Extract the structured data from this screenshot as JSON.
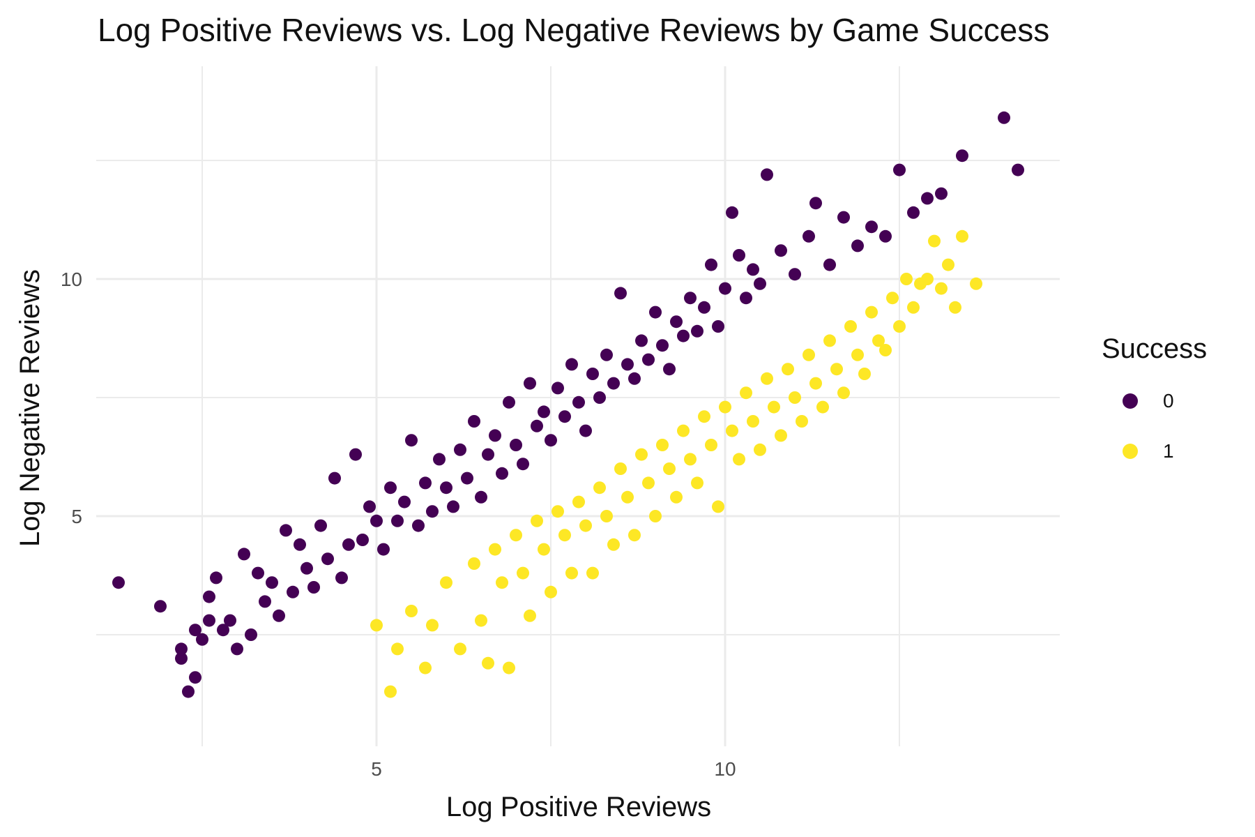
{
  "chart_data": {
    "type": "scatter",
    "title": "Log Positive Reviews vs. Log Negative Reviews by Game Success",
    "xlabel": "Log Positive Reviews",
    "ylabel": "Log Negative Reviews",
    "xlim": [
      1.3,
      14.9
    ],
    "ylim": [
      0.5,
      13.4
    ],
    "x_ticks": [
      5,
      10
    ],
    "y_ticks": [
      5,
      10
    ],
    "grid": true,
    "legend": {
      "title": "Success",
      "position": "right"
    },
    "series": [
      {
        "name": "0",
        "color": "#440154",
        "points": [
          [
            1.3,
            3.6
          ],
          [
            1.9,
            3.1
          ],
          [
            2.2,
            2.0
          ],
          [
            2.2,
            2.2
          ],
          [
            2.3,
            1.3
          ],
          [
            2.4,
            1.6
          ],
          [
            2.4,
            2.6
          ],
          [
            2.5,
            2.4
          ],
          [
            2.6,
            2.8
          ],
          [
            2.6,
            3.3
          ],
          [
            2.7,
            3.7
          ],
          [
            2.8,
            2.6
          ],
          [
            2.9,
            2.8
          ],
          [
            3.0,
            2.2
          ],
          [
            3.1,
            4.2
          ],
          [
            3.2,
            2.5
          ],
          [
            3.3,
            3.8
          ],
          [
            3.4,
            3.2
          ],
          [
            3.5,
            3.6
          ],
          [
            3.6,
            2.9
          ],
          [
            3.7,
            4.7
          ],
          [
            3.8,
            3.4
          ],
          [
            3.9,
            4.4
          ],
          [
            4.0,
            3.9
          ],
          [
            4.1,
            3.5
          ],
          [
            4.2,
            4.8
          ],
          [
            4.3,
            4.1
          ],
          [
            4.4,
            5.8
          ],
          [
            4.5,
            3.7
          ],
          [
            4.6,
            4.4
          ],
          [
            4.7,
            6.3
          ],
          [
            4.8,
            4.5
          ],
          [
            4.9,
            5.2
          ],
          [
            5.0,
            4.9
          ],
          [
            5.1,
            4.3
          ],
          [
            5.2,
            5.6
          ],
          [
            5.3,
            4.9
          ],
          [
            5.4,
            5.3
          ],
          [
            5.5,
            6.6
          ],
          [
            5.6,
            4.8
          ],
          [
            5.7,
            5.7
          ],
          [
            5.8,
            5.1
          ],
          [
            5.9,
            6.2
          ],
          [
            6.0,
            5.6
          ],
          [
            6.1,
            5.2
          ],
          [
            6.2,
            6.4
          ],
          [
            6.3,
            5.8
          ],
          [
            6.4,
            7.0
          ],
          [
            6.5,
            5.4
          ],
          [
            6.6,
            6.3
          ],
          [
            6.7,
            6.7
          ],
          [
            6.8,
            5.9
          ],
          [
            6.9,
            7.4
          ],
          [
            7.0,
            6.5
          ],
          [
            7.1,
            6.1
          ],
          [
            7.2,
            7.8
          ],
          [
            7.3,
            6.9
          ],
          [
            7.4,
            7.2
          ],
          [
            7.5,
            6.6
          ],
          [
            7.6,
            7.7
          ],
          [
            7.7,
            7.1
          ],
          [
            7.8,
            8.2
          ],
          [
            7.9,
            7.4
          ],
          [
            8.0,
            6.8
          ],
          [
            8.1,
            8.0
          ],
          [
            8.2,
            7.5
          ],
          [
            8.3,
            8.4
          ],
          [
            8.4,
            7.8
          ],
          [
            8.5,
            9.7
          ],
          [
            8.6,
            8.2
          ],
          [
            8.7,
            7.9
          ],
          [
            8.8,
            8.7
          ],
          [
            8.9,
            8.3
          ],
          [
            9.0,
            9.3
          ],
          [
            9.1,
            8.6
          ],
          [
            9.2,
            8.1
          ],
          [
            9.3,
            9.1
          ],
          [
            9.4,
            8.8
          ],
          [
            9.5,
            9.6
          ],
          [
            9.6,
            8.9
          ],
          [
            9.7,
            9.4
          ],
          [
            9.8,
            10.3
          ],
          [
            9.9,
            9.0
          ],
          [
            10.0,
            9.8
          ],
          [
            10.1,
            11.4
          ],
          [
            10.2,
            10.5
          ],
          [
            10.3,
            9.6
          ],
          [
            10.4,
            10.2
          ],
          [
            10.5,
            9.9
          ],
          [
            10.6,
            12.2
          ],
          [
            10.8,
            10.6
          ],
          [
            11.0,
            10.1
          ],
          [
            11.2,
            10.9
          ],
          [
            11.3,
            11.6
          ],
          [
            11.5,
            10.3
          ],
          [
            11.7,
            11.3
          ],
          [
            11.9,
            10.7
          ],
          [
            12.1,
            11.1
          ],
          [
            12.3,
            10.9
          ],
          [
            12.5,
            12.3
          ],
          [
            12.7,
            11.4
          ],
          [
            12.9,
            11.7
          ],
          [
            13.1,
            11.8
          ],
          [
            13.4,
            12.6
          ],
          [
            14.0,
            13.4
          ],
          [
            14.2,
            12.3
          ]
        ]
      },
      {
        "name": "1",
        "color": "#FDE725",
        "points": [
          [
            5.0,
            2.7
          ],
          [
            5.2,
            1.3
          ],
          [
            5.3,
            2.2
          ],
          [
            5.5,
            3.0
          ],
          [
            5.7,
            1.8
          ],
          [
            5.8,
            2.7
          ],
          [
            6.0,
            3.6
          ],
          [
            6.2,
            2.2
          ],
          [
            6.4,
            4.0
          ],
          [
            6.5,
            2.8
          ],
          [
            6.6,
            1.9
          ],
          [
            6.7,
            4.3
          ],
          [
            6.8,
            3.6
          ],
          [
            6.9,
            1.8
          ],
          [
            7.0,
            4.6
          ],
          [
            7.1,
            3.8
          ],
          [
            7.2,
            2.9
          ],
          [
            7.3,
            4.9
          ],
          [
            7.4,
            4.3
          ],
          [
            7.5,
            3.4
          ],
          [
            7.6,
            5.1
          ],
          [
            7.7,
            4.6
          ],
          [
            7.8,
            3.8
          ],
          [
            7.9,
            5.3
          ],
          [
            8.0,
            4.8
          ],
          [
            8.1,
            3.8
          ],
          [
            8.2,
            5.6
          ],
          [
            8.3,
            5.0
          ],
          [
            8.4,
            4.4
          ],
          [
            8.5,
            6.0
          ],
          [
            8.6,
            5.4
          ],
          [
            8.7,
            4.6
          ],
          [
            8.8,
            6.3
          ],
          [
            8.9,
            5.7
          ],
          [
            9.0,
            5.0
          ],
          [
            9.1,
            6.5
          ],
          [
            9.2,
            6.0
          ],
          [
            9.3,
            5.4
          ],
          [
            9.4,
            6.8
          ],
          [
            9.5,
            6.2
          ],
          [
            9.6,
            5.7
          ],
          [
            9.7,
            7.1
          ],
          [
            9.8,
            6.5
          ],
          [
            9.9,
            5.2
          ],
          [
            10.0,
            7.3
          ],
          [
            10.1,
            6.8
          ],
          [
            10.2,
            6.2
          ],
          [
            10.3,
            7.6
          ],
          [
            10.4,
            7.0
          ],
          [
            10.5,
            6.4
          ],
          [
            10.6,
            7.9
          ],
          [
            10.7,
            7.3
          ],
          [
            10.8,
            6.7
          ],
          [
            10.9,
            8.1
          ],
          [
            11.0,
            7.5
          ],
          [
            11.1,
            7.0
          ],
          [
            11.2,
            8.4
          ],
          [
            11.3,
            7.8
          ],
          [
            11.4,
            7.3
          ],
          [
            11.5,
            8.7
          ],
          [
            11.6,
            8.1
          ],
          [
            11.7,
            7.6
          ],
          [
            11.8,
            9.0
          ],
          [
            11.9,
            8.4
          ],
          [
            12.0,
            8.0
          ],
          [
            12.1,
            9.3
          ],
          [
            12.2,
            8.7
          ],
          [
            12.3,
            8.5
          ],
          [
            12.4,
            9.6
          ],
          [
            12.5,
            9.0
          ],
          [
            12.6,
            10.0
          ],
          [
            12.7,
            9.4
          ],
          [
            12.8,
            9.9
          ],
          [
            12.9,
            10.0
          ],
          [
            13.0,
            10.8
          ],
          [
            13.1,
            9.8
          ],
          [
            13.2,
            10.3
          ],
          [
            13.3,
            9.4
          ],
          [
            13.4,
            10.9
          ],
          [
            13.6,
            9.9
          ]
        ]
      }
    ]
  }
}
